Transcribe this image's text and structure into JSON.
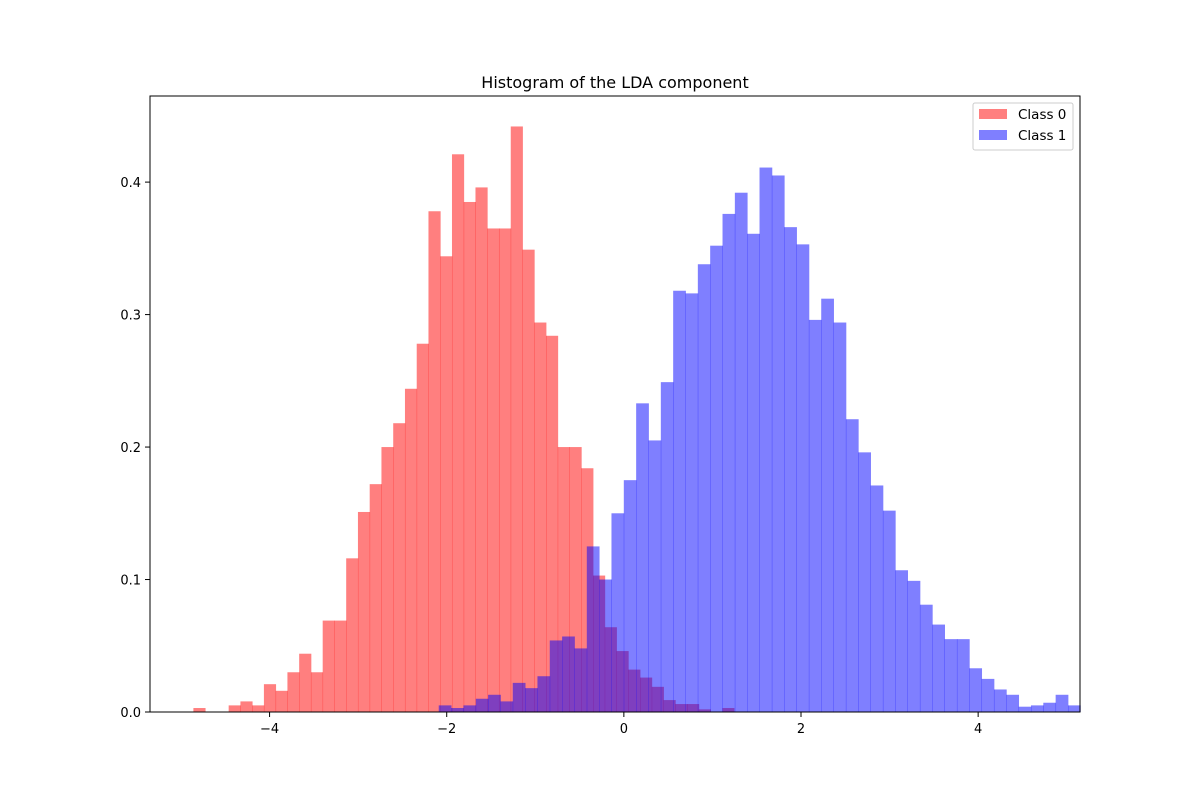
{
  "chart_data": {
    "type": "bar",
    "title": "Histogram of the LDA component",
    "xlabel": "",
    "ylabel": "",
    "xlim": [
      -5.35,
      5.15
    ],
    "ylim": [
      0,
      0.465
    ],
    "xticks": [
      -4,
      -2,
      0,
      2,
      4
    ],
    "xtick_labels": [
      "−4",
      "−2",
      "0",
      "2",
      "4"
    ],
    "yticks": [
      0.0,
      0.1,
      0.2,
      0.3,
      0.4
    ],
    "ytick_labels": [
      "0.0",
      "0.1",
      "0.2",
      "0.3",
      "0.4"
    ],
    "grid": false,
    "legend_position": "top-right",
    "series": [
      {
        "name": "Class 0",
        "color": "#ff0000",
        "alpha": 0.5,
        "bin_start": -4.86,
        "bin_width": 0.1327,
        "values": [
          0.003,
          0.0,
          0.0,
          0.005,
          0.008,
          0.005,
          0.021,
          0.016,
          0.03,
          0.044,
          0.03,
          0.069,
          0.069,
          0.116,
          0.151,
          0.172,
          0.2,
          0.218,
          0.244,
          0.278,
          0.378,
          0.344,
          0.421,
          0.385,
          0.396,
          0.365,
          0.365,
          0.442,
          0.349,
          0.294,
          0.284,
          0.2,
          0.2,
          0.184,
          0.103,
          0.064,
          0.046,
          0.032,
          0.026,
          0.019,
          0.009,
          0.006,
          0.006,
          0.002,
          0.0,
          0.003
        ]
      },
      {
        "name": "Class 1",
        "color": "#0000ff",
        "alpha": 0.5,
        "bin_start": -2.09,
        "bin_width": 0.1393,
        "values": [
          0.005,
          0.003,
          0.005,
          0.01,
          0.013,
          0.008,
          0.022,
          0.018,
          0.027,
          0.054,
          0.057,
          0.048,
          0.125,
          0.1,
          0.15,
          0.175,
          0.233,
          0.205,
          0.249,
          0.318,
          0.316,
          0.338,
          0.352,
          0.376,
          0.392,
          0.361,
          0.411,
          0.405,
          0.366,
          0.353,
          0.296,
          0.312,
          0.294,
          0.221,
          0.196,
          0.171,
          0.152,
          0.107,
          0.099,
          0.081,
          0.066,
          0.055,
          0.055,
          0.033,
          0.025,
          0.017,
          0.013,
          0.004,
          0.005,
          0.007,
          0.013,
          0.005
        ]
      }
    ]
  }
}
